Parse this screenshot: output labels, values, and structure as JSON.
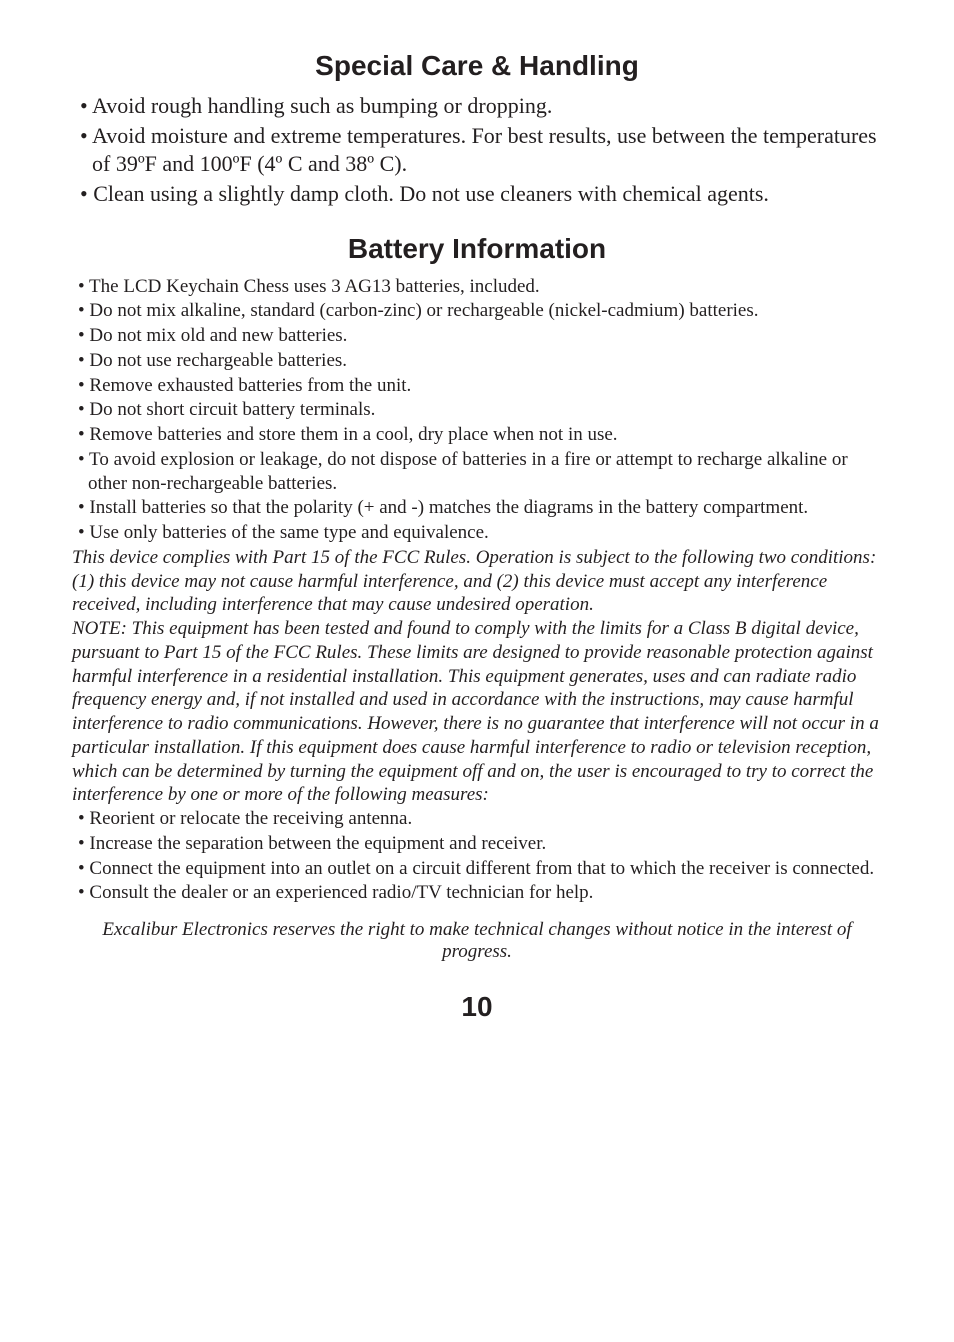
{
  "section1": {
    "title": "Special Care & Handling",
    "bullets": [
      "• Avoid rough handling such as bumping or dropping.",
      "• Avoid moisture and extreme temperatures. For best results, use between the temperatures of 39ºF and 100ºF (4º C and 38º C).",
      "• Clean using a slightly damp cloth. Do not use cleaners with chemical agents."
    ]
  },
  "section2": {
    "title": "Battery Information",
    "bullets": [
      "• The LCD Keychain Chess uses 3 AG13 batteries, included.",
      "• Do not mix alkaline, standard (carbon-zinc) or rechargeable (nickel-cadmium) batteries.",
      "• Do not mix old and new batteries.",
      "• Do not use rechargeable batteries.",
      "• Remove exhausted batteries from the unit.",
      "• Do not short circuit battery terminals.",
      "• Remove batteries and store them in a cool, dry place when not in use.",
      "• To avoid explosion or leakage, do not dispose of batteries in a fire or attempt to recharge alkaline or other non-rechargeable batteries.",
      "• Install batteries so that the polarity (+ and -) matches the diagrams in the battery compartment.",
      "• Use only batteries of the same type and equivalence."
    ],
    "fcc1": "This device complies with Part 15 of the FCC Rules. Operation is subject to the following two conditions: (1) this device may not cause harmful interference, and (2) this device must accept any interference received, including interference that may cause undesired operation.",
    "fcc2": " NOTE: This equipment has been tested and found to comply with the limits for a Class B digital device, pursuant to Part 15 of the FCC Rules. These limits are designed to provide reasonable protection against harmful interference in a residential installation. This equipment generates, uses and can radiate radio frequency energy and, if not installed and used in accordance with the instructions, may cause harmful interference to radio communications. However, there is no guarantee that interference will not occur in a particular installation. If this equipment does cause harmful interference to radio or television reception, which can be determined by turning the equipment off and on, the user is encouraged to try to correct the interference by one or more of the following measures:",
    "fccBullets": [
      "• Reorient or relocate the receiving antenna.",
      "• Increase the separation between the equipment and receiver.",
      "• Connect the equipment into an outlet on a circuit different from that to which the receiver is connected.",
      "• Consult the dealer or an experienced radio/TV technician for help."
    ]
  },
  "footer": "Excalibur Electronics reserves the right to make technical changes without notice in the interest of progress.",
  "pageNumber": "10"
}
